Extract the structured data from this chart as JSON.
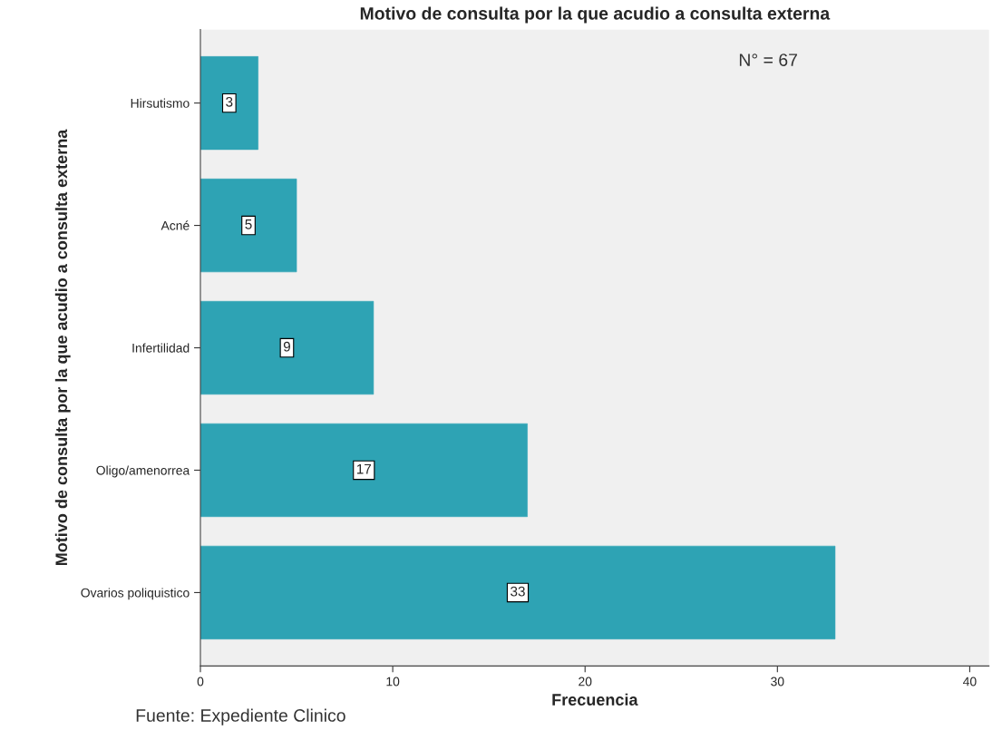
{
  "chart_data": {
    "type": "bar",
    "orientation": "horizontal",
    "title": "Motivo de consulta por la que acudio a consulta externa",
    "xlabel": "Frecuencia",
    "ylabel": "Motivo de consulta por la que acudio a consulta externa",
    "categories": [
      "Hirsutismo",
      "Acné",
      "Infertilidad",
      "Oligo/amenorrea",
      "Ovarios poliquistico"
    ],
    "values": [
      3,
      5,
      9,
      17,
      33
    ],
    "color": "#2ea3b4",
    "xlim": [
      0,
      41
    ],
    "xticks": [
      0,
      10,
      20,
      30,
      40
    ],
    "grid": false,
    "data_labels": true,
    "annotations": [
      "N° = 67",
      "Fuente: Expediente Clinico"
    ]
  }
}
